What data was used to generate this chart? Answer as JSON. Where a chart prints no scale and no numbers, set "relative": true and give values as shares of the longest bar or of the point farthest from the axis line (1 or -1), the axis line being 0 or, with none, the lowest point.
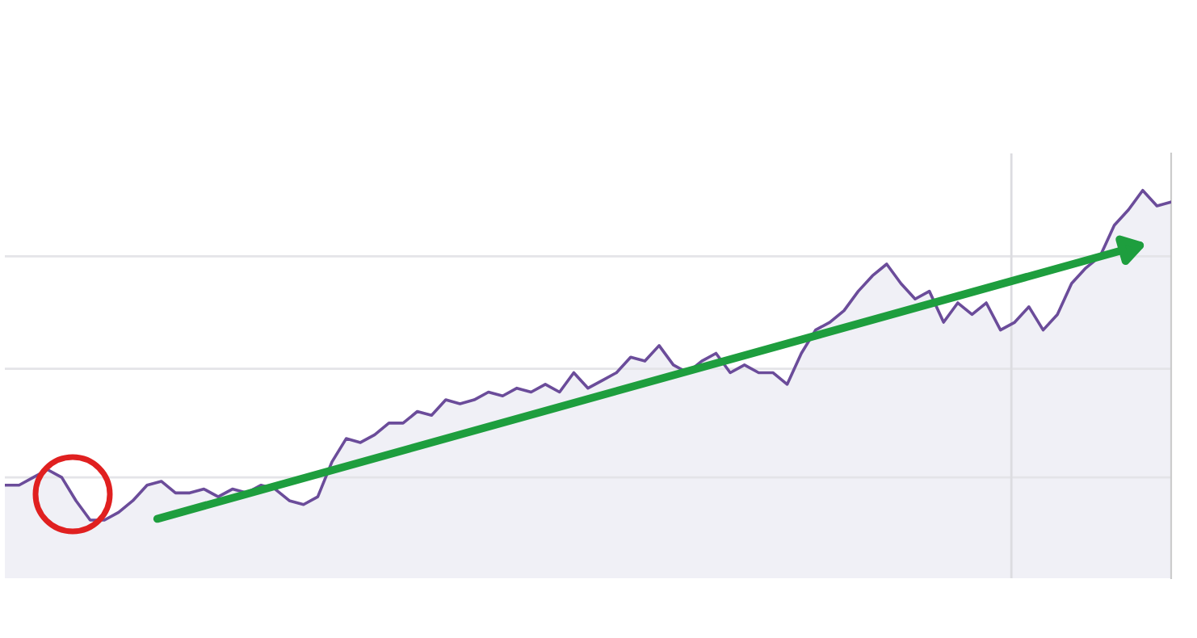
{
  "chart_data": {
    "type": "area",
    "relative": true,
    "categories": [
      null,
      null,
      null,
      null,
      null,
      null,
      null,
      null,
      null,
      null,
      null,
      null,
      null,
      null,
      null,
      null,
      null,
      null,
      null,
      null,
      null,
      null,
      null,
      null,
      null,
      null,
      null,
      null,
      null,
      null,
      null,
      null,
      null,
      null,
      null,
      null,
      null,
      null,
      null,
      null,
      null,
      null,
      null,
      null,
      null,
      null,
      null,
      null,
      null,
      null,
      null,
      null,
      null,
      null,
      null,
      null,
      null,
      null,
      null,
      null,
      null,
      null,
      null,
      null,
      null,
      null,
      null,
      null,
      null,
      null,
      null,
      null,
      null,
      null,
      null,
      null,
      null,
      null,
      null,
      null,
      null,
      null,
      null
    ],
    "series": [
      {
        "color": "#6b4c9a",
        "values": [
          0.24,
          0.24,
          0.26,
          0.28,
          0.26,
          0.2,
          0.15,
          0.15,
          0.17,
          0.2,
          0.24,
          0.25,
          0.22,
          0.22,
          0.23,
          0.21,
          0.23,
          0.22,
          0.24,
          0.23,
          0.2,
          0.19,
          0.21,
          0.3,
          0.36,
          0.35,
          0.37,
          0.4,
          0.4,
          0.43,
          0.42,
          0.46,
          0.45,
          0.46,
          0.48,
          0.47,
          0.49,
          0.48,
          0.5,
          0.48,
          0.53,
          0.49,
          0.51,
          0.53,
          0.57,
          0.56,
          0.6,
          0.55,
          0.53,
          0.56,
          0.58,
          0.53,
          0.55,
          0.53,
          0.53,
          0.5,
          0.58,
          0.64,
          0.66,
          0.69,
          0.74,
          0.78,
          0.81,
          0.76,
          0.72,
          0.74,
          0.66,
          0.71,
          0.68,
          0.71,
          0.64,
          0.66,
          0.7,
          0.64,
          0.68,
          0.76,
          0.8,
          0.83,
          0.91,
          0.95,
          1,
          0.96,
          0.97
        ]
      }
    ],
    "ref_lines": [
      {
        "axis": "y",
        "value": 0.83,
        "color": "#e4e4e8"
      },
      {
        "axis": "y",
        "value": 0.54,
        "color": "#e4e4e8"
      },
      {
        "axis": "y",
        "value": 0.26,
        "color": "#e4e4e8"
      }
    ]
  }
}
